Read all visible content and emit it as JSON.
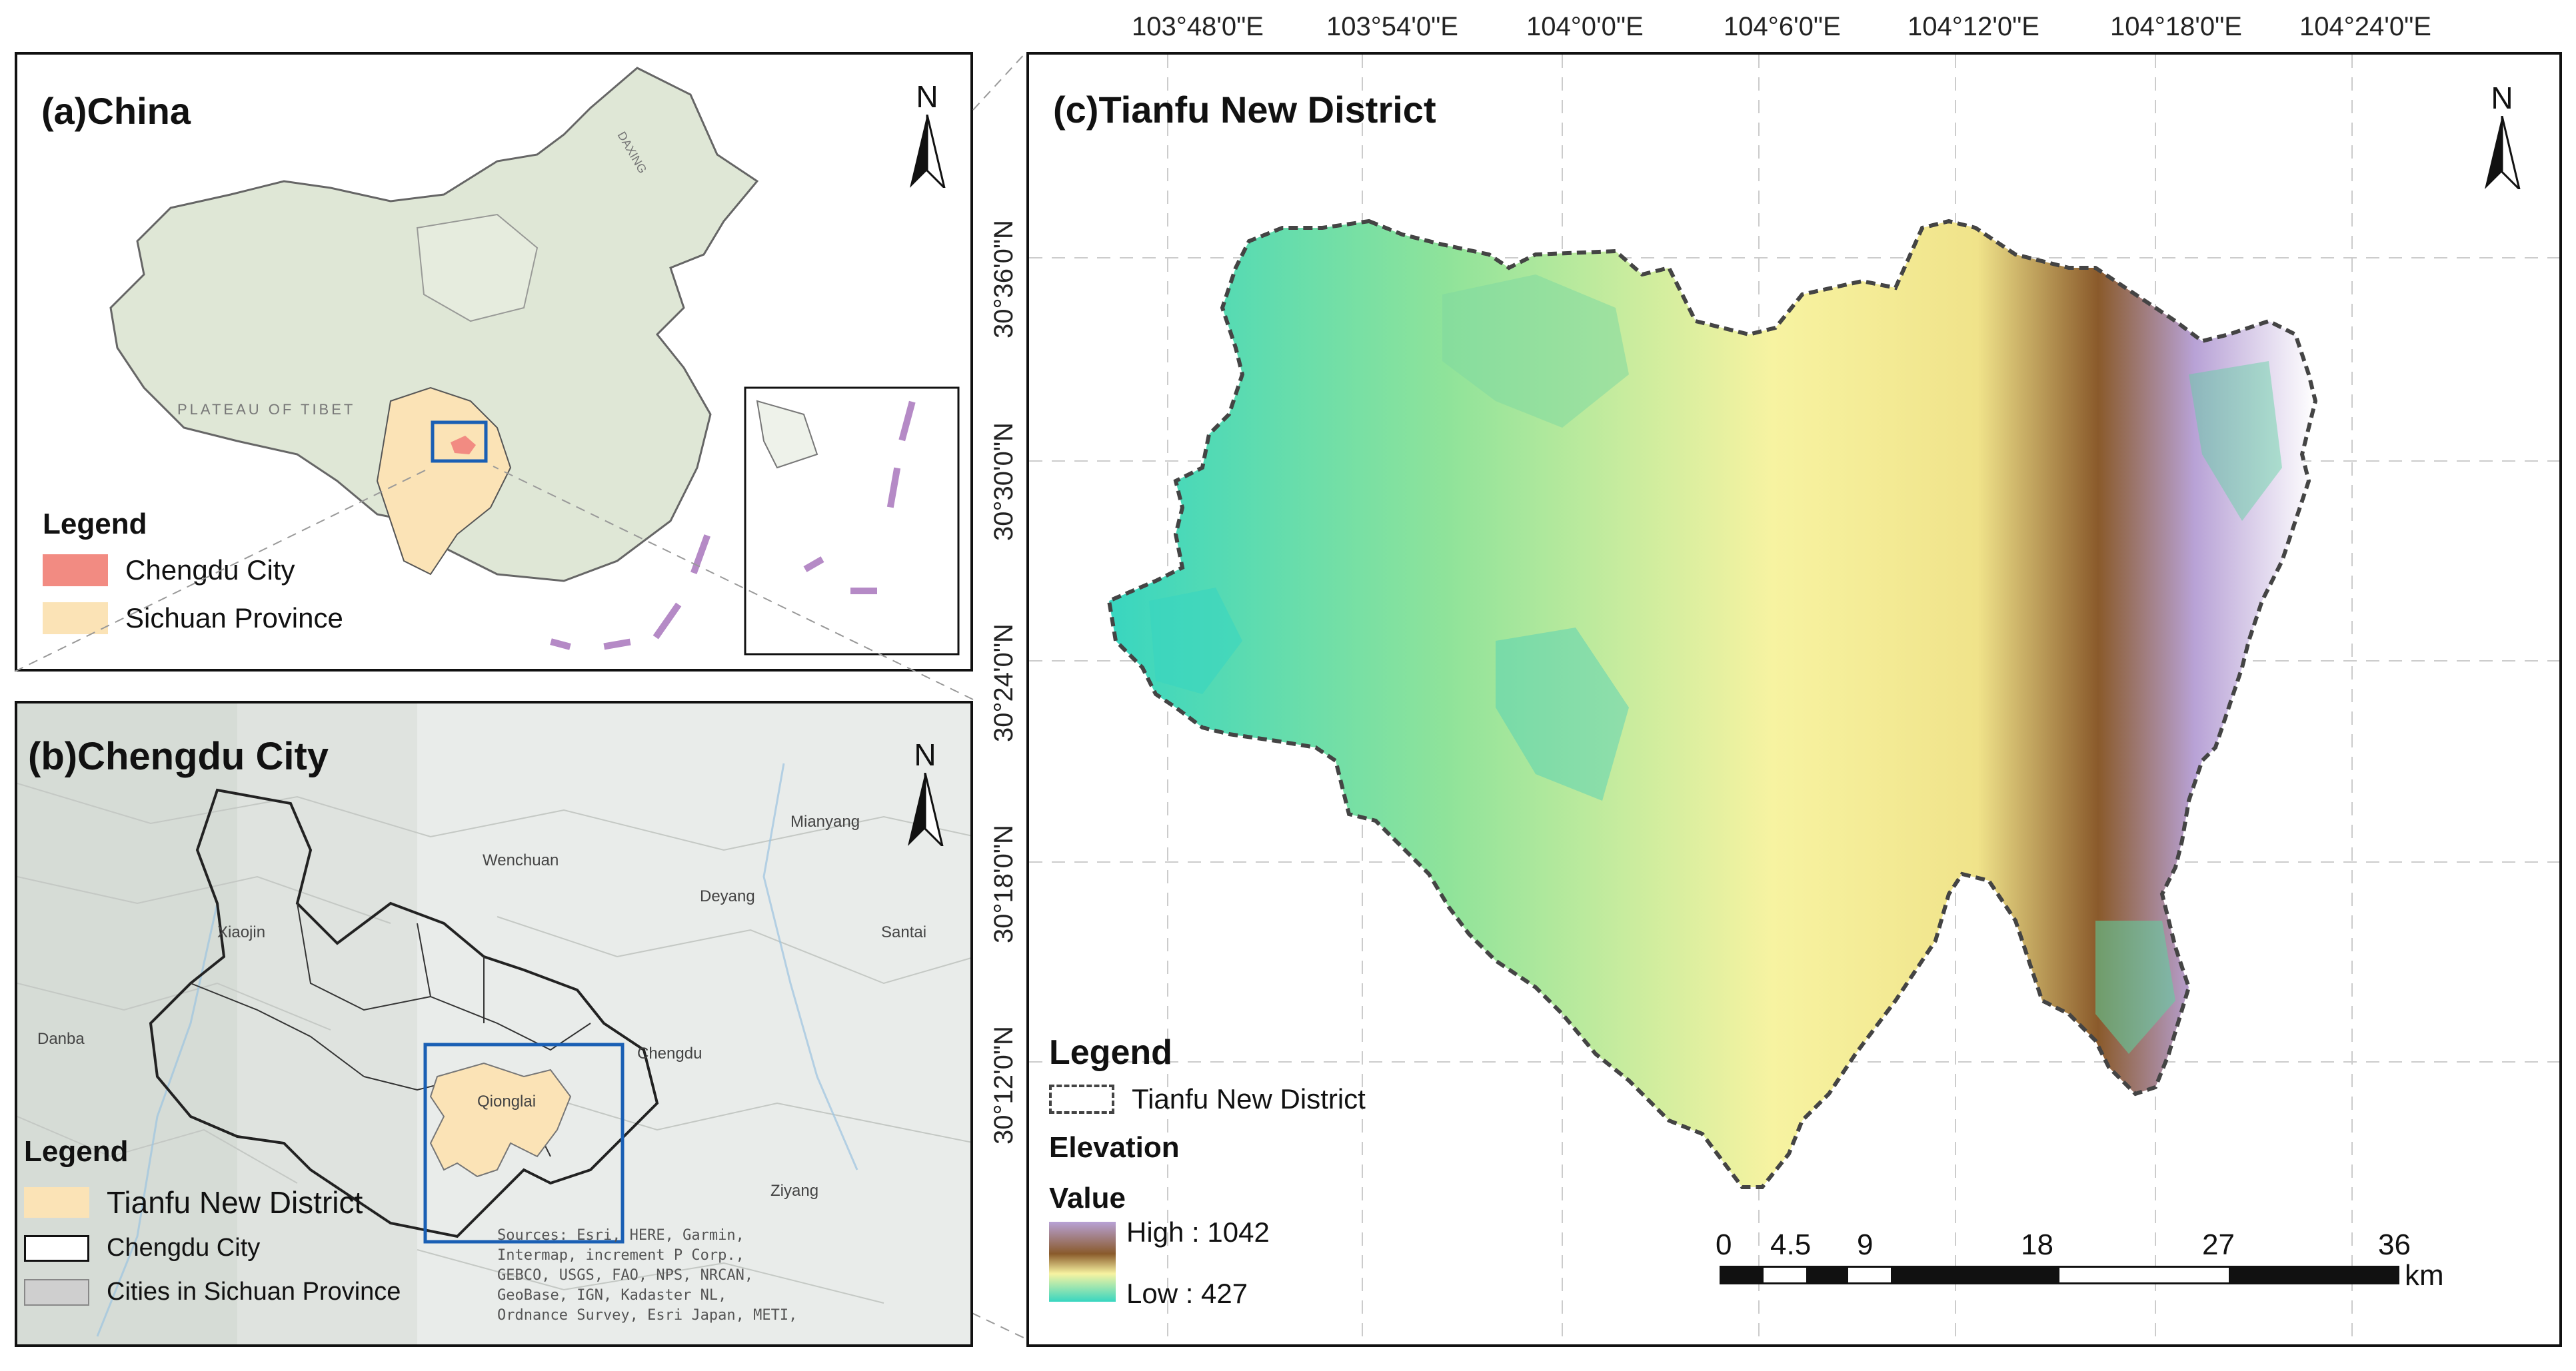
{
  "panel_a": {
    "title": "(a)China",
    "north": "N",
    "legend": {
      "title": "Legend",
      "items": [
        {
          "label": "Chengdu City",
          "color": "#f28b82"
        },
        {
          "label": "Sichuan Province",
          "color": "#fbe3b6"
        }
      ]
    },
    "map_labels": [
      "PLATEAU OF TIBET",
      "DAXING"
    ]
  },
  "panel_b": {
    "title": "(b)Chengdu City",
    "north": "N",
    "legend": {
      "title": "Legend",
      "items": [
        {
          "label": "Tianfu New District",
          "color": "#fbe3b6"
        },
        {
          "label": "Chengdu City",
          "color": "#ffffff"
        },
        {
          "label": "Cities in Sichuan Province",
          "color": "#cfcfcf"
        }
      ]
    },
    "place_labels": [
      "Mianyang",
      "Deyang",
      "Santai",
      "Xiaojin",
      "Danba",
      "Qionglai",
      "Ziyang",
      "Wenchuan",
      "Chengdu"
    ],
    "sources": "Sources: Esri, HERE, Garmin,\nIntermap, increment P Corp.,\nGEBCO, USGS, FAO, NPS, NRCAN,\nGeoBase, IGN, Kadaster NL,\nOrdnance Survey, Esri Japan, METI,"
  },
  "panel_c": {
    "title": "(c)Tianfu New District",
    "north": "N",
    "longitudes": [
      "103°48'0\"E",
      "103°54'0\"E",
      "104°0'0\"E",
      "104°6'0\"E",
      "104°12'0\"E",
      "104°18'0\"E",
      "104°24'0\"E"
    ],
    "latitudes": [
      "30°36'0\"N",
      "30°30'0\"N",
      "30°24'0\"N",
      "30°18'0\"N",
      "30°12'0\"N"
    ],
    "legend": {
      "title": "Legend",
      "boundary_label": "Tianfu New District",
      "elevation_title": "Elevation",
      "value_title": "Value",
      "high": "High : 1042",
      "low": "Low : 427"
    },
    "scale": {
      "ticks": [
        "0",
        "4.5",
        "9",
        "18",
        "27",
        "36"
      ],
      "unit": "km"
    },
    "colors": {
      "low": "#38d6c0",
      "mid": "#f7f3a1",
      "brown": "#8a5a2b",
      "high": "#b8a2d6"
    }
  }
}
